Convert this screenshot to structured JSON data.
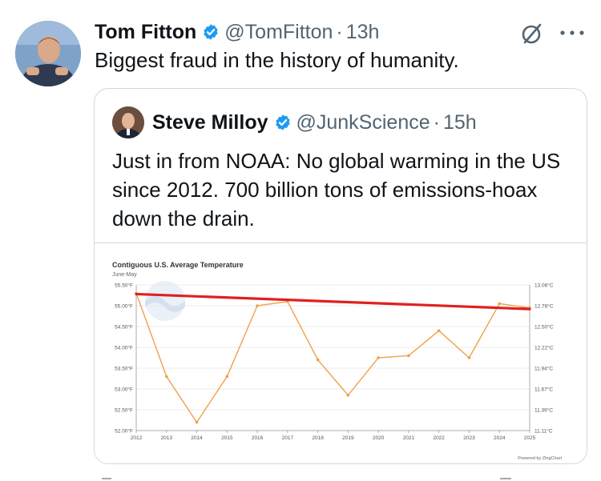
{
  "tweet": {
    "author_name": "Tom Fitton",
    "handle": "@TomFitton",
    "separator": "·",
    "time": "13h",
    "text": "Biggest fraud in the history of humanity."
  },
  "quoted": {
    "author_name": "Steve Milloy",
    "handle": "@JunkScience",
    "separator": "·",
    "time": "15h",
    "text": "Just in from NOAA: No global warming in the US since 2012. 700 billion tons of emissions-hoax down the drain."
  },
  "colors": {
    "verified": "#1d9bf0",
    "series_line": "#f0a04b",
    "trend_line": "#e02020"
  },
  "chart_data": {
    "type": "line",
    "title": "Contiguous U.S. Average Temperature",
    "subtitle": "June-May",
    "x": [
      2012,
      2013,
      2014,
      2015,
      2016,
      2017,
      2018,
      2019,
      2020,
      2021,
      2022,
      2023,
      2024,
      2025
    ],
    "x_tick_labels": [
      "2012",
      "2013",
      "2014",
      "2015",
      "2016",
      "2017",
      "2018",
      "2019",
      "2020",
      "2021",
      "2022",
      "2023",
      "2024",
      "2025"
    ],
    "series": [
      {
        "values": [
          55.3,
          53.3,
          52.2,
          53.3,
          55.0,
          55.1,
          53.7,
          52.85,
          53.75,
          53.8,
          54.4,
          53.75,
          55.05,
          54.95
        ]
      }
    ],
    "trend_line": {
      "x": [
        2012,
        2025
      ],
      "y": [
        55.28,
        54.92
      ]
    },
    "ylim": [
      52.0,
      55.5
    ],
    "y_tick_labels_left": [
      "55.50°F",
      "55.00°F",
      "54.50°F",
      "54.00°F",
      "53.50°F",
      "53.00°F",
      "52.50°F",
      "52.00°F"
    ],
    "y_tick_labels_right": [
      "13.06°C",
      "12.78°C",
      "12.50°C",
      "12.22°C",
      "11.94°C",
      "11.67°C",
      "11.39°C",
      "11.11°C"
    ],
    "credit": "Powered by ZingChart",
    "grid": true
  }
}
